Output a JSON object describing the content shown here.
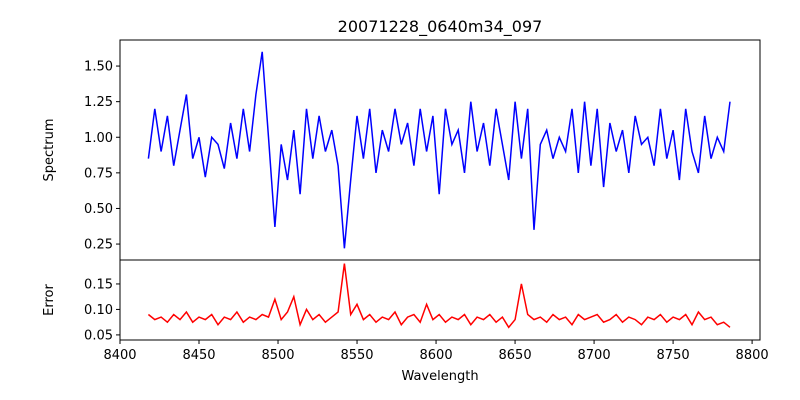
{
  "chart_data": [
    {
      "type": "line",
      "title": "20071228_0640m34_097",
      "xlabel": "",
      "ylabel": "Spectrum",
      "color": "#0000ff",
      "xlim": [
        8400,
        8805
      ],
      "ylim": [
        0.138,
        1.683
      ],
      "yticks": [
        "0.25",
        "0.50",
        "0.75",
        "1.00",
        "1.25",
        "1.50"
      ],
      "x_start": 8418,
      "x_step": 4,
      "values": [
        0.85,
        1.2,
        0.9,
        1.15,
        0.8,
        1.05,
        1.3,
        0.85,
        1.0,
        0.72,
        1.0,
        0.95,
        0.78,
        1.1,
        0.85,
        1.2,
        0.9,
        1.3,
        1.6,
        1.0,
        0.37,
        0.95,
        0.7,
        1.05,
        0.6,
        1.2,
        0.85,
        1.15,
        0.9,
        1.05,
        0.8,
        0.22,
        0.7,
        1.15,
        0.85,
        1.2,
        0.75,
        1.05,
        0.9,
        1.2,
        0.95,
        1.1,
        0.8,
        1.2,
        0.9,
        1.15,
        0.6,
        1.2,
        0.95,
        1.05,
        0.75,
        1.25,
        0.9,
        1.1,
        0.8,
        1.2,
        0.95,
        0.7,
        1.25,
        0.85,
        1.2,
        0.35,
        0.95,
        1.05,
        0.85,
        1.0,
        0.9,
        1.2,
        0.75,
        1.25,
        0.8,
        1.2,
        0.65,
        1.1,
        0.9,
        1.05,
        0.75,
        1.15,
        0.95,
        1.0,
        0.8,
        1.2,
        0.85,
        1.05,
        0.7,
        1.2,
        0.9,
        0.75,
        1.15,
        0.85,
        1.0,
        0.9,
        1.25
      ]
    },
    {
      "type": "line",
      "xlabel": "Wavelength",
      "ylabel": "Error",
      "color": "#ff0000",
      "xlim": [
        8400,
        8805
      ],
      "ylim": [
        0.04,
        0.197
      ],
      "xticks": [
        "8400",
        "8450",
        "8500",
        "8550",
        "8600",
        "8650",
        "8700",
        "8750",
        "8800"
      ],
      "yticks": [
        "0.05",
        "0.10",
        "0.15"
      ],
      "x_start": 8418,
      "x_step": 4,
      "values": [
        0.09,
        0.08,
        0.085,
        0.075,
        0.09,
        0.08,
        0.095,
        0.075,
        0.085,
        0.08,
        0.09,
        0.07,
        0.085,
        0.08,
        0.095,
        0.075,
        0.085,
        0.08,
        0.09,
        0.085,
        0.12,
        0.08,
        0.095,
        0.125,
        0.07,
        0.1,
        0.08,
        0.09,
        0.075,
        0.085,
        0.095,
        0.19,
        0.09,
        0.11,
        0.08,
        0.09,
        0.075,
        0.085,
        0.08,
        0.095,
        0.07,
        0.085,
        0.09,
        0.075,
        0.11,
        0.08,
        0.09,
        0.075,
        0.085,
        0.08,
        0.09,
        0.07,
        0.085,
        0.08,
        0.09,
        0.075,
        0.085,
        0.065,
        0.08,
        0.15,
        0.09,
        0.08,
        0.085,
        0.075,
        0.09,
        0.08,
        0.085,
        0.07,
        0.09,
        0.08,
        0.085,
        0.09,
        0.075,
        0.08,
        0.09,
        0.075,
        0.085,
        0.08,
        0.07,
        0.085,
        0.08,
        0.09,
        0.075,
        0.085,
        0.08,
        0.09,
        0.07,
        0.095,
        0.08,
        0.085,
        0.07,
        0.075,
        0.065
      ]
    }
  ]
}
